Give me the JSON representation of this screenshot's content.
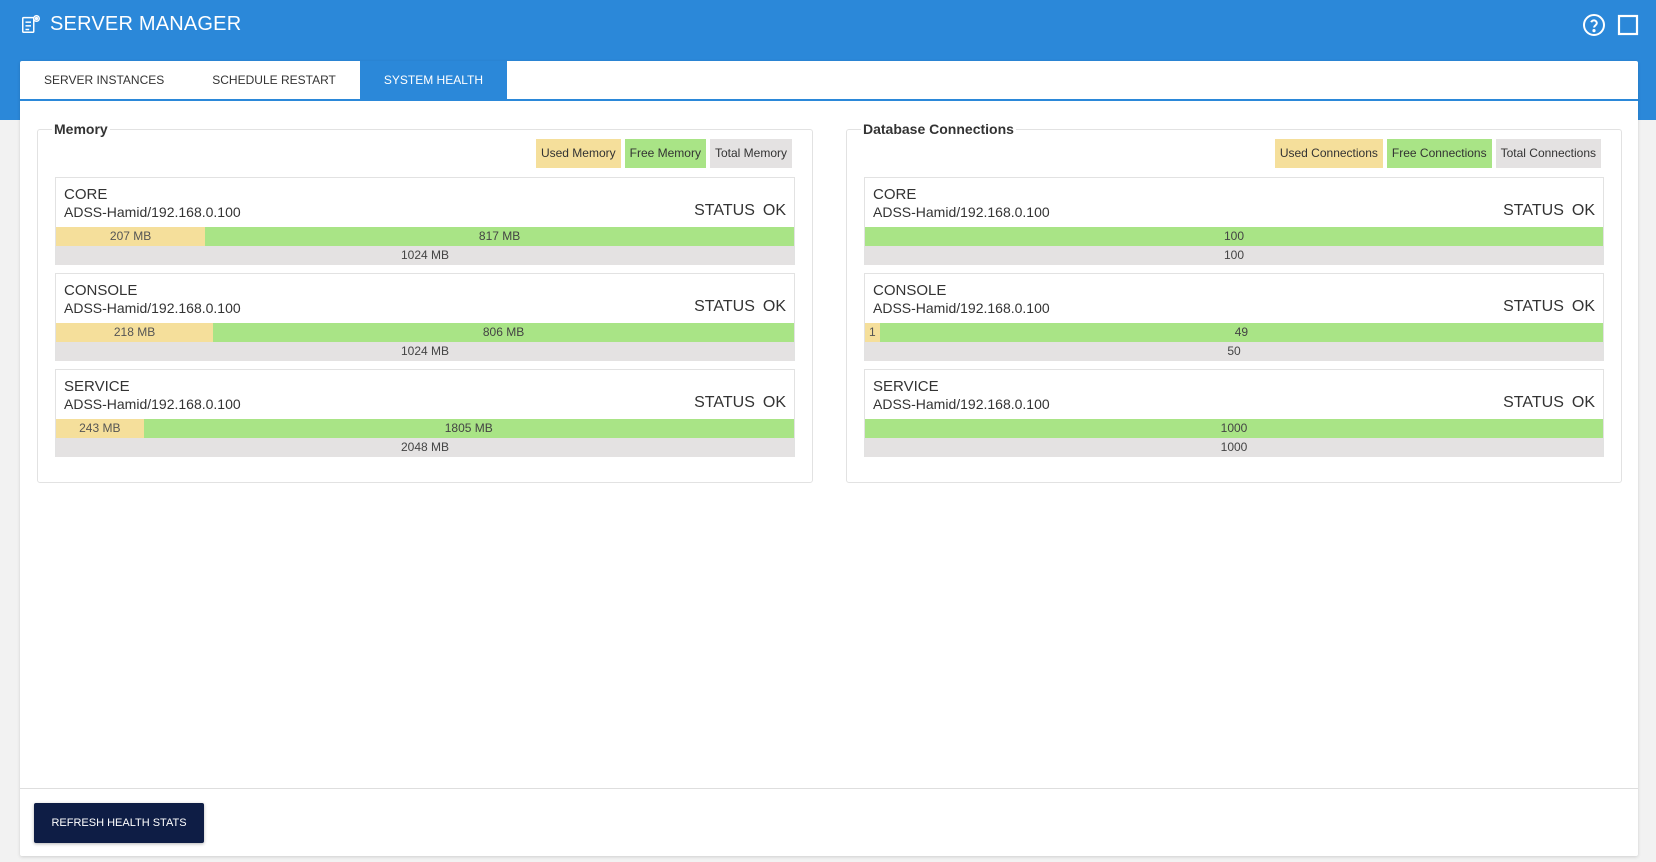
{
  "app": {
    "title": "SERVER MANAGER",
    "accent_color": "#2b88d9",
    "icons": {
      "logo": "server-settings-icon",
      "help": "help-circle-icon",
      "window": "maximize-icon"
    }
  },
  "tabs": [
    {
      "label": "SERVER INSTANCES",
      "active": false
    },
    {
      "label": "SCHEDULE RESTART",
      "active": false
    },
    {
      "label": "SYSTEM HEALTH",
      "active": true
    }
  ],
  "memory": {
    "title": "Memory",
    "legend": {
      "used": "Used Memory",
      "free": "Free Memory",
      "total": "Total Memory"
    },
    "cards": [
      {
        "name": "CORE",
        "host": "ADSS-Hamid/192.168.0.100",
        "status_label": "STATUS",
        "status": "OK",
        "used": 207,
        "free": 817,
        "total": 1024,
        "used_text": "207 MB",
        "free_text": "817 MB",
        "total_text": "1024 MB"
      },
      {
        "name": "CONSOLE",
        "host": "ADSS-Hamid/192.168.0.100",
        "status_label": "STATUS",
        "status": "OK",
        "used": 218,
        "free": 806,
        "total": 1024,
        "used_text": "218 MB",
        "free_text": "806 MB",
        "total_text": "1024 MB"
      },
      {
        "name": "SERVICE",
        "host": "ADSS-Hamid/192.168.0.100",
        "status_label": "STATUS",
        "status": "OK",
        "used": 243,
        "free": 1805,
        "total": 2048,
        "used_text": "243 MB",
        "free_text": "1805 MB",
        "total_text": "2048 MB"
      }
    ]
  },
  "connections": {
    "title": "Database Connections",
    "legend": {
      "used": "Used Connections",
      "free": "Free Connections",
      "total": "Total Connections"
    },
    "cards": [
      {
        "name": "CORE",
        "host": "ADSS-Hamid/192.168.0.100",
        "status_label": "STATUS",
        "status": "OK",
        "used": 0,
        "free": 100,
        "total": 100,
        "used_text": "",
        "free_text": "100",
        "total_text": "100"
      },
      {
        "name": "CONSOLE",
        "host": "ADSS-Hamid/192.168.0.100",
        "status_label": "STATUS",
        "status": "OK",
        "used": 1,
        "free": 49,
        "total": 50,
        "used_text": "1",
        "free_text": "49",
        "total_text": "50"
      },
      {
        "name": "SERVICE",
        "host": "ADSS-Hamid/192.168.0.100",
        "status_label": "STATUS",
        "status": "OK",
        "used": 0,
        "free": 1000,
        "total": 1000,
        "used_text": "",
        "free_text": "1000",
        "total_text": "1000"
      }
    ]
  },
  "footer": {
    "refresh_label": "REFRESH HEALTH STATS"
  }
}
